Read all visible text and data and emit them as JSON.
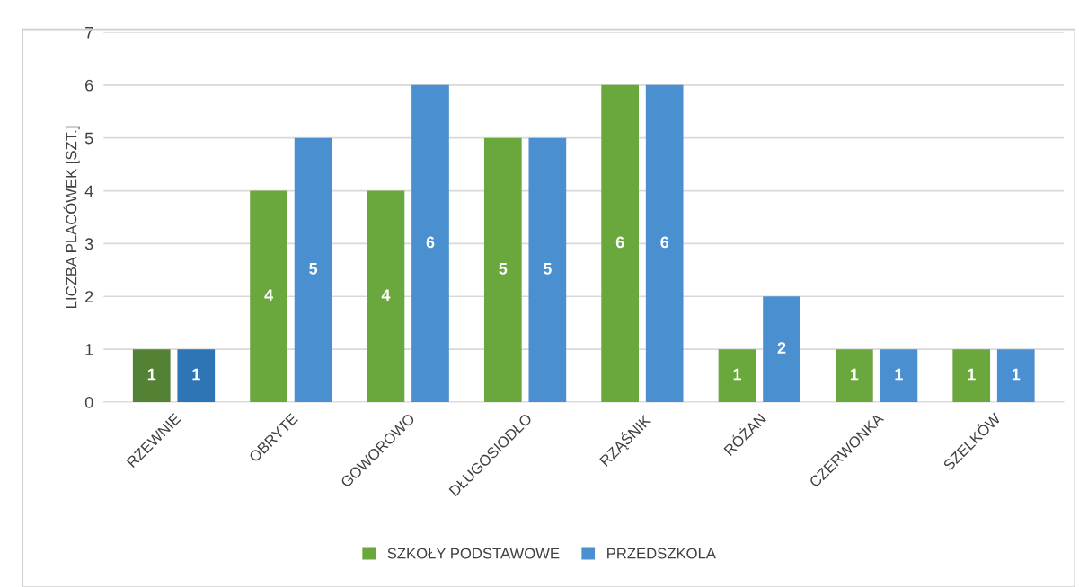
{
  "chart_data": {
    "type": "bar",
    "ylabel": "LICZBA PLACÓWEK [SZT.]",
    "categories": [
      "RZEWNIE",
      "OBRYTE",
      "GOWOROWO",
      "DŁUGOSIODŁO",
      "RZĄŚNIK",
      "RÓŻAN",
      "CZERWONKA",
      "SZELKÓW"
    ],
    "series": [
      {
        "name": "SZKOŁY PODSTAWOWE",
        "color": "#6aa73c",
        "colors": [
          "#548235",
          "#6aa73c",
          "#6aa73c",
          "#6aa73c",
          "#6aa73c",
          "#6aa73c",
          "#6aa73c",
          "#6aa73c"
        ],
        "values": [
          1,
          4,
          4,
          5,
          6,
          1,
          1,
          1
        ]
      },
      {
        "name": "PRZEDSZKOLA",
        "color": "#4a90d0",
        "colors": [
          "#2e75b6",
          "#4a90d0",
          "#4a90d0",
          "#4a90d0",
          "#4a90d0",
          "#4a90d0",
          "#4a90d0",
          "#4a90d0"
        ],
        "values": [
          1,
          5,
          6,
          5,
          6,
          2,
          1,
          1
        ]
      }
    ],
    "ylim": [
      0,
      7
    ],
    "yticks": [
      0,
      1,
      2,
      3,
      4,
      5,
      6,
      7
    ],
    "grid": "y",
    "legend": "bottom",
    "data_labels": true
  }
}
